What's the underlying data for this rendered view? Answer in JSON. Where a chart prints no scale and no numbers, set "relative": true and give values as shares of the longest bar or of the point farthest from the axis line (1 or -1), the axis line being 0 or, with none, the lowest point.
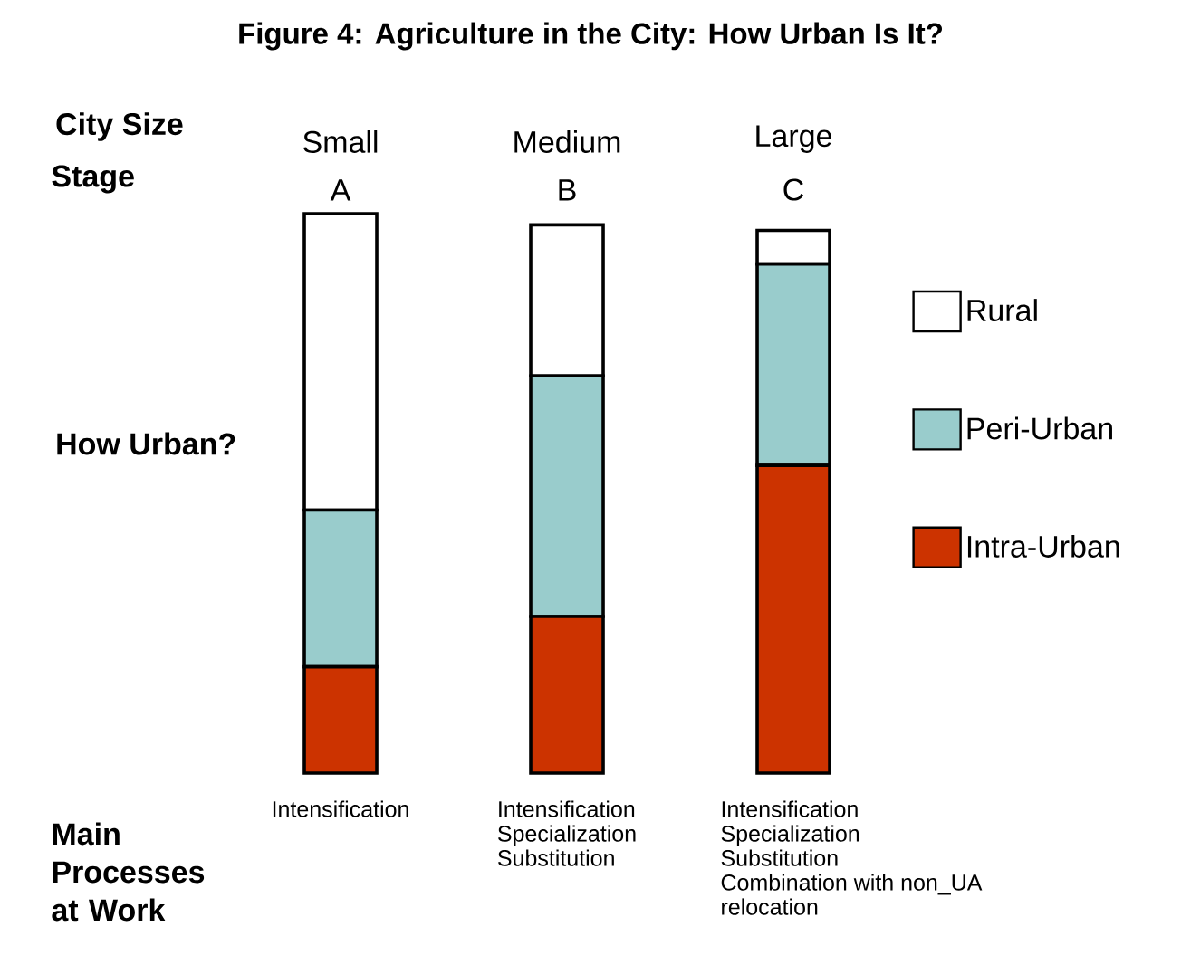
{
  "chart_data": {
    "type": "bar",
    "title": "Figure 4: Agriculture in the City: How Urban Is It?",
    "xlabel": "City Size",
    "ylabel": "How Urban?",
    "categories": [
      "Small",
      "Medium",
      "Large"
    ],
    "stacked": true,
    "relative": true,
    "legend": "right",
    "series": [
      {
        "name": "Intra-Urban",
        "color": "#cc3300",
        "values": [
          0.19,
          0.28,
          0.55
        ]
      },
      {
        "name": "Peri-Urban",
        "color": "#99cccc",
        "values": [
          0.28,
          0.43,
          0.36
        ]
      },
      {
        "name": "Rural",
        "color": "#ffffff",
        "values": [
          0.53,
          0.27,
          0.06
        ]
      }
    ],
    "annotations": [
      "Stage",
      "Main Processes at Work",
      "A",
      "B",
      "C",
      "Intensification",
      "Intensification",
      "Specialization",
      "Substitution",
      "Intensification",
      "Specialization",
      "Substitution",
      "Combination with non_UA",
      "relocation"
    ]
  }
}
